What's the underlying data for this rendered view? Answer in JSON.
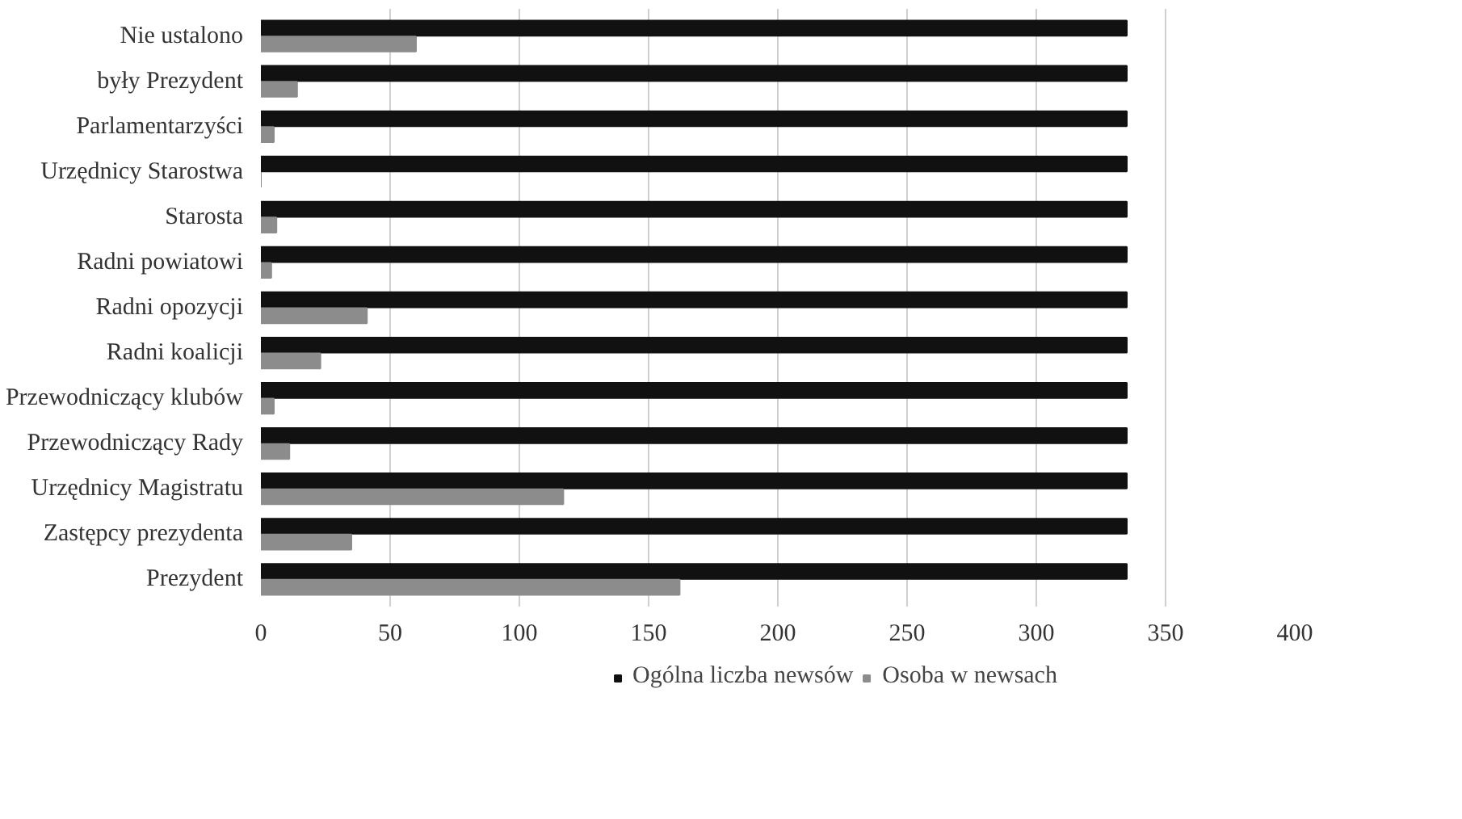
{
  "chart_data": {
    "type": "bar",
    "orientation": "horizontal",
    "categories": [
      "Nie ustalono",
      "były Prezydent",
      "Parlamentarzyści",
      "Urzędnicy Starostwa",
      "Starosta",
      "Radni powiatowi",
      "Radni opozycji",
      "Radni koalicji",
      "Przewodniczący klubów",
      "Przewodniczący Rady",
      "Urzędnicy Magistratu",
      "Zastępcy prezydenta",
      "Prezydent"
    ],
    "series": [
      {
        "name": "Ogólna liczba newsów",
        "color": "#111111",
        "values": [
          335,
          335,
          335,
          335,
          335,
          335,
          335,
          335,
          335,
          335,
          335,
          335,
          335
        ]
      },
      {
        "name": "Osoba w newsach",
        "color": "#8c8c8c",
        "values": [
          60,
          14,
          5,
          0,
          6,
          4,
          41,
          23,
          5,
          11,
          117,
          35,
          162
        ]
      }
    ],
    "xlim": [
      0,
      400
    ],
    "xticks": [
      0,
      50,
      100,
      150,
      200,
      250,
      300,
      350,
      400
    ],
    "grid": "x",
    "legend": "bottom"
  }
}
